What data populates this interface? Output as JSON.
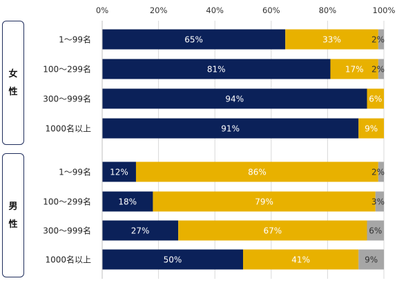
{
  "chart_data": {
    "type": "bar",
    "orientation": "horizontal",
    "stacked": true,
    "xlim": [
      0,
      100
    ],
    "x_ticks": [
      "0%",
      "20%",
      "40%",
      "60%",
      "80%",
      "100%"
    ],
    "grid": true,
    "legend": "none",
    "groups": [
      {
        "label_chars": [
          "女",
          "性"
        ],
        "rows": [
          {
            "label": "1〜99名",
            "values": [
              65,
              33,
              2
            ],
            "labels": [
              "65%",
              "33%",
              "2%"
            ]
          },
          {
            "label": "100〜299名",
            "values": [
              81,
              17,
              2
            ],
            "labels": [
              "81%",
              "17%",
              "2%"
            ]
          },
          {
            "label": "300〜999名",
            "values": [
              94,
              6,
              0
            ],
            "labels": [
              "94%",
              "6%",
              ""
            ]
          },
          {
            "label": "1000名以上",
            "values": [
              91,
              9,
              0
            ],
            "labels": [
              "91%",
              "9%",
              ""
            ]
          }
        ]
      },
      {
        "label_chars": [
          "男",
          "性"
        ],
        "rows": [
          {
            "label": "1〜99名",
            "values": [
              12,
              86,
              2
            ],
            "labels": [
              "12%",
              "86%",
              "2%"
            ]
          },
          {
            "label": "100〜299名",
            "values": [
              18,
              79,
              3
            ],
            "labels": [
              "18%",
              "79%",
              "3%"
            ]
          },
          {
            "label": "300〜999名",
            "values": [
              27,
              67,
              6
            ],
            "labels": [
              "27%",
              "67%",
              "6%"
            ]
          },
          {
            "label": "1000名以上",
            "values": [
              50,
              41,
              9
            ],
            "labels": [
              "50%",
              "41%",
              "9%"
            ]
          }
        ]
      }
    ],
    "series_colors": [
      "#0b2159",
      "#e8b100",
      "#a6a6a6"
    ],
    "label_colors": [
      "#ffffff",
      "#ffffff",
      "#333333"
    ]
  }
}
